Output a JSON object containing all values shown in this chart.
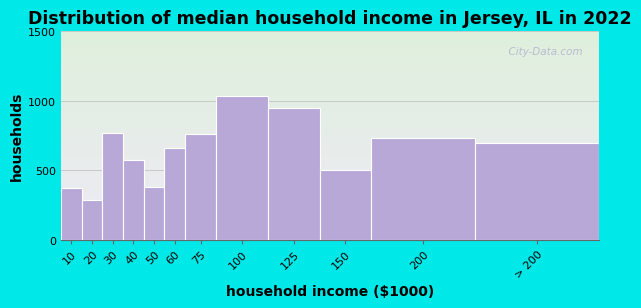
{
  "title": "Distribution of median household income in Jersey, IL in 2022",
  "xlabel": "household income ($1000)",
  "ylabel": "households",
  "categories": [
    "10",
    "20",
    "30",
    "40",
    "50",
    "60",
    "75",
    "100",
    "125",
    "150",
    "200",
    "> 200"
  ],
  "values": [
    370,
    290,
    770,
    575,
    380,
    660,
    760,
    1035,
    950,
    500,
    730,
    700
  ],
  "bin_lefts": [
    0,
    10,
    20,
    30,
    40,
    50,
    60,
    75,
    100,
    125,
    150,
    200
  ],
  "bin_rights": [
    10,
    20,
    30,
    40,
    50,
    60,
    75,
    100,
    125,
    150,
    200,
    260
  ],
  "bar_color": "#b8a8d8",
  "bar_edge_color": "#ffffff",
  "ylim": [
    0,
    1500
  ],
  "yticks": [
    0,
    500,
    1000,
    1500
  ],
  "bg_outer": "#00e8e8",
  "bg_plot_top_color": "#dff0dc",
  "bg_plot_bottom_color": "#eeeaf6",
  "title_fontsize": 12.5,
  "axis_label_fontsize": 10,
  "tick_fontsize": 8,
  "watermark_text": "  City-Data.com"
}
